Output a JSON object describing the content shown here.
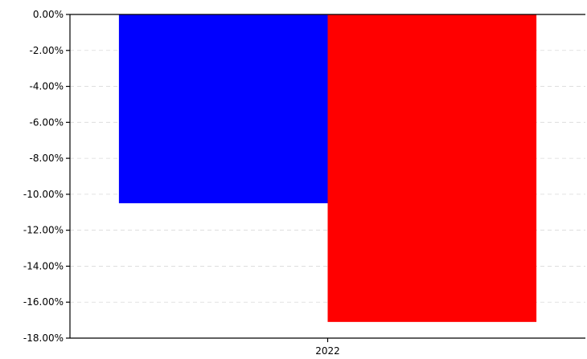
{
  "chart_data": {
    "type": "bar",
    "categories": [
      "2022"
    ],
    "series": [
      {
        "values": [
          -10.5
        ],
        "color": "#0000ff"
      },
      {
        "values": [
          -17.1
        ],
        "color": "#ff0000"
      }
    ],
    "ylim": [
      -18,
      0
    ],
    "yticks": [
      0,
      -2,
      -4,
      -6,
      -8,
      -10,
      -12,
      -14,
      -16,
      -18
    ],
    "ytick_labels": [
      "0.00%",
      "-2.00%",
      "-4.00%",
      "-6.00%",
      "-8.00%",
      "-10.00%",
      "-12.00%",
      "-14.00%",
      "-16.00%",
      "-18.00%"
    ],
    "xtick_labels": [
      "2022"
    ],
    "grid": {
      "y": true,
      "style": "dashed"
    },
    "title": "",
    "xlabel": "",
    "ylabel": ""
  }
}
